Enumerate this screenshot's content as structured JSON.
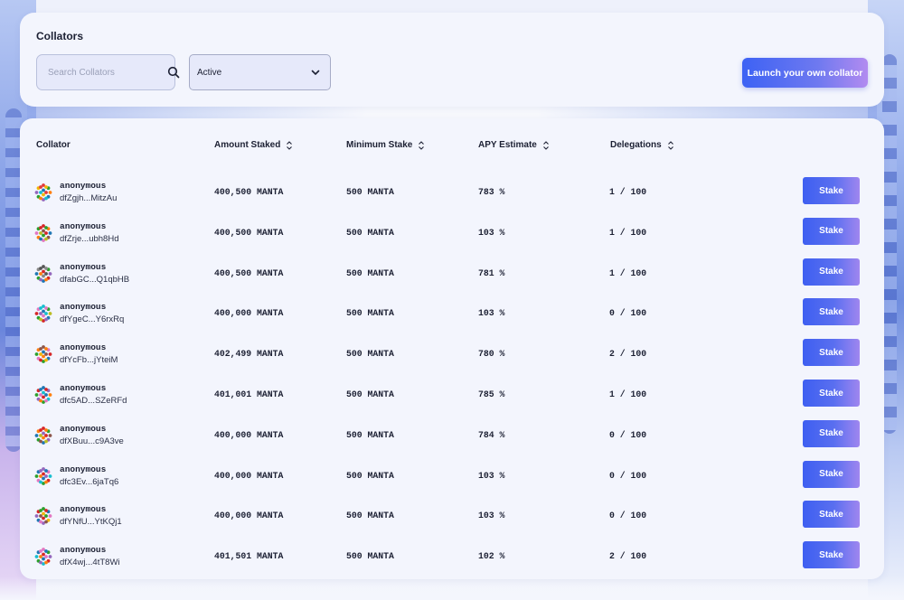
{
  "header": {
    "title": "Collators",
    "search_placeholder": "Search Collators",
    "status_selected": "Active",
    "launch_label": "Launch your own collator"
  },
  "table": {
    "columns": {
      "collator": "Collator",
      "amount_staked": "Amount Staked",
      "minimum_stake": "Minimum Stake",
      "apy_estimate": "APY Estimate",
      "delegations": "Delegations"
    },
    "stake_label": "Stake",
    "rows": [
      {
        "name": "anonymous",
        "address": "dfZgjh...MitzAu",
        "amount": "400,500 MANTA",
        "minimum": "500 MANTA",
        "apy": "783 %",
        "delegations": "1 / 100"
      },
      {
        "name": "anonymous",
        "address": "dfZrje...ubh8Hd",
        "amount": "400,500 MANTA",
        "minimum": "500 MANTA",
        "apy": "103 %",
        "delegations": "1 / 100"
      },
      {
        "name": "anonymous",
        "address": "dfabGC...Q1qbHB",
        "amount": "400,500 MANTA",
        "minimum": "500 MANTA",
        "apy": "781 %",
        "delegations": "1 / 100"
      },
      {
        "name": "anonymous",
        "address": "dfYgeC...Y6rxRq",
        "amount": "400,000 MANTA",
        "minimum": "500 MANTA",
        "apy": "103 %",
        "delegations": "0 / 100"
      },
      {
        "name": "anonymous",
        "address": "dfYcFb...jYteiM",
        "amount": "402,499 MANTA",
        "minimum": "500 MANTA",
        "apy": "780 %",
        "delegations": "2 / 100"
      },
      {
        "name": "anonymous",
        "address": "dfc5AD...SZeRFd",
        "amount": "401,001 MANTA",
        "minimum": "500 MANTA",
        "apy": "785 %",
        "delegations": "1 / 100"
      },
      {
        "name": "anonymous",
        "address": "dfXBuu...c9A3ve",
        "amount": "400,000 MANTA",
        "minimum": "500 MANTA",
        "apy": "784 %",
        "delegations": "0 / 100"
      },
      {
        "name": "anonymous",
        "address": "dfc3Ev...6jaTq6",
        "amount": "400,000 MANTA",
        "minimum": "500 MANTA",
        "apy": "103 %",
        "delegations": "0 / 100"
      },
      {
        "name": "anonymous",
        "address": "dfYNfU...YtKQj1",
        "amount": "400,000 MANTA",
        "minimum": "500 MANTA",
        "apy": "103 %",
        "delegations": "0 / 100"
      },
      {
        "name": "anonymous",
        "address": "dfX4wj...4tT8Wi",
        "amount": "401,501 MANTA",
        "minimum": "500 MANTA",
        "apy": "102 %",
        "delegations": "2 / 100"
      }
    ]
  },
  "colors": {
    "accent_start": "#3d62f4",
    "accent_end": "#b28bf0",
    "panel_bg": "#f3f5fd",
    "text": "#1c2033"
  }
}
